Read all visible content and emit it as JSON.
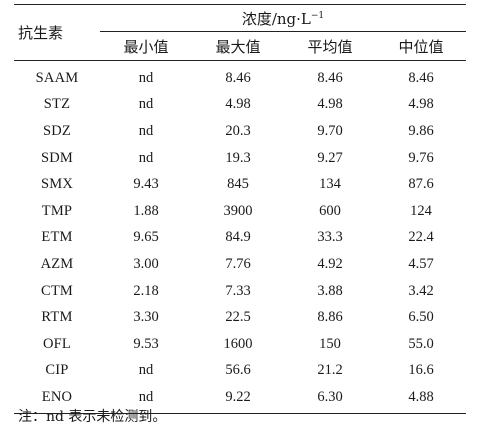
{
  "table": {
    "row_header": "抗生素",
    "group_header_prefix": "浓度/ng·L",
    "group_header_sup": "−1",
    "columns": [
      "最小值",
      "最大值",
      "平均值",
      "中位值"
    ],
    "rows": [
      {
        "name": "SAAM",
        "min": "nd",
        "max": "8.46",
        "mean": "8.46",
        "median": "8.46"
      },
      {
        "name": "STZ",
        "min": "nd",
        "max": "4.98",
        "mean": "4.98",
        "median": "4.98"
      },
      {
        "name": "SDZ",
        "min": "nd",
        "max": "20.3",
        "mean": "9.70",
        "median": "9.86"
      },
      {
        "name": "SDM",
        "min": "nd",
        "max": "19.3",
        "mean": "9.27",
        "median": "9.76"
      },
      {
        "name": "SMX",
        "min": "9.43",
        "max": "845",
        "mean": "134",
        "median": "87.6"
      },
      {
        "name": "TMP",
        "min": "1.88",
        "max": "3900",
        "mean": "600",
        "median": "124"
      },
      {
        "name": "ETM",
        "min": "9.65",
        "max": "84.9",
        "mean": "33.3",
        "median": "22.4"
      },
      {
        "name": "AZM",
        "min": "3.00",
        "max": "7.76",
        "mean": "4.92",
        "median": "4.57"
      },
      {
        "name": "CTM",
        "min": "2.18",
        "max": "7.33",
        "mean": "3.88",
        "median": "3.42"
      },
      {
        "name": "RTM",
        "min": "3.30",
        "max": "22.5",
        "mean": "8.86",
        "median": "6.50"
      },
      {
        "name": "OFL",
        "min": "9.53",
        "max": "1600",
        "mean": "150",
        "median": "55.0"
      },
      {
        "name": "CIP",
        "min": "nd",
        "max": "56.6",
        "mean": "21.2",
        "median": "16.6"
      },
      {
        "name": "ENO",
        "min": "nd",
        "max": "9.22",
        "mean": "6.30",
        "median": "4.88"
      }
    ]
  },
  "note": "注：nd 表示未检测到。"
}
